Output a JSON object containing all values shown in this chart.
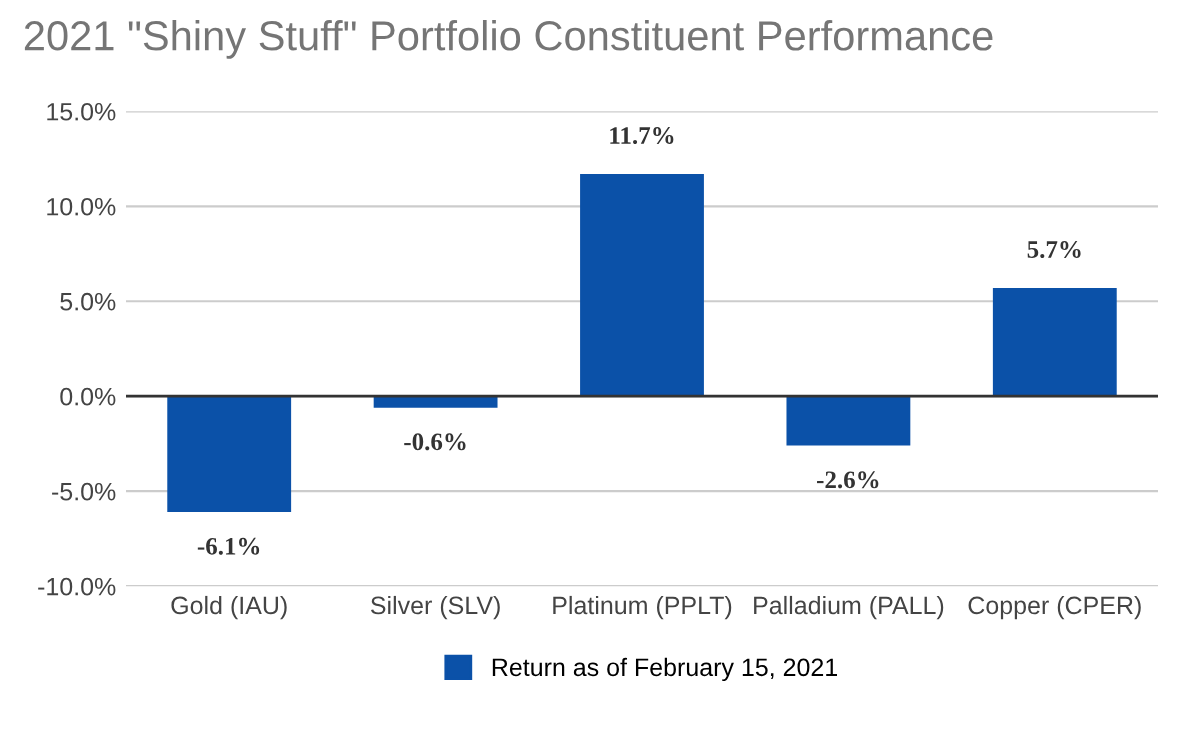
{
  "chart_data": {
    "type": "bar",
    "title": "2021 \"Shiny Stuff\" Portfolio Constituent Performance",
    "categories": [
      "Gold (IAU)",
      "Silver (SLV)",
      "Platinum (PPLT)",
      "Palladium (PALL)",
      "Copper (CPER)"
    ],
    "series": [
      {
        "name": "Return as of February 15, 2021",
        "color": "#0b51a8",
        "values": [
          -6.1,
          -0.6,
          11.7,
          -2.6,
          5.7
        ],
        "value_labels": [
          "-6.1%",
          "-0.6%",
          "11.7%",
          "-2.6%",
          "5.7%"
        ]
      }
    ],
    "ylim": [
      -10,
      15
    ],
    "yticks": [
      {
        "value": -10,
        "label": "-10.0%"
      },
      {
        "value": -5,
        "label": "-5.0%"
      },
      {
        "value": 0,
        "label": "0.0%"
      },
      {
        "value": 5,
        "label": "5.0%"
      },
      {
        "value": 10,
        "label": "10.0%"
      },
      {
        "value": 15,
        "label": "15.0%"
      }
    ],
    "grid": "y",
    "legend": "bottom"
  }
}
